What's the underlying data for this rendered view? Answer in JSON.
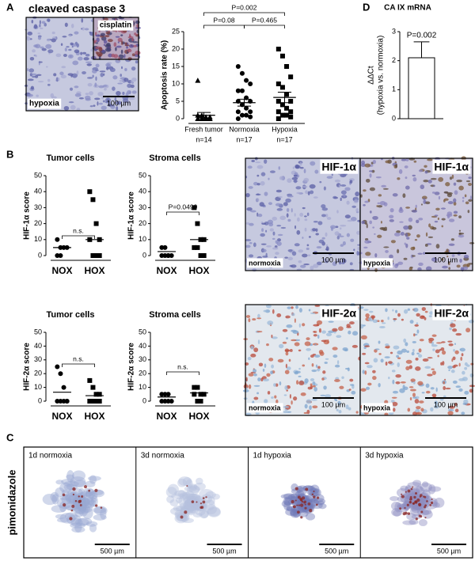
{
  "figure": {
    "panel_labels": [
      "A",
      "B",
      "C",
      "D"
    ],
    "a_image": {
      "title": "cleaved caspase 3",
      "inset": "cisplatin",
      "label": "hypoxia",
      "scale": "100 µm"
    },
    "b_images": [
      {
        "marker": "HIF-1α",
        "label": "normoxia",
        "scale": "100 µm"
      },
      {
        "marker": "HIF-1α",
        "label": "hypoxia",
        "scale": "100 µm"
      },
      {
        "marker": "HIF-2α",
        "label": "normoxia",
        "scale": "100 µm"
      },
      {
        "marker": "HIF-2α",
        "label": "hypoxia",
        "scale": "100 µm"
      }
    ],
    "c_stain": "pimonidazole",
    "c_images": [
      {
        "label": "1d normoxia",
        "scale": "500 µm"
      },
      {
        "label": "3d normoxia",
        "scale": "500 µm"
      },
      {
        "label": "1d hypoxia",
        "scale": "500 µm"
      },
      {
        "label": "3d hypoxia",
        "scale": "500 µm"
      }
    ]
  },
  "chart_data": [
    {
      "type": "strip",
      "ylabel": "Apoptosis rate (%)",
      "ylim": [
        0,
        25
      ],
      "yticks": [
        0,
        5,
        10,
        15,
        20,
        25
      ],
      "categories": [
        "Fresh tumor",
        "Normoxia",
        "Hypoxia"
      ],
      "n_labels": [
        "n=14",
        "n=17",
        "n=17"
      ],
      "markers": [
        "triangle",
        "circle",
        "square"
      ],
      "color": "#000000",
      "values": [
        [
          11,
          1,
          0.5,
          0,
          0,
          0,
          0,
          0.5,
          1,
          0,
          0,
          0,
          0,
          0
        ],
        [
          15,
          13,
          11,
          10,
          8,
          8,
          6,
          5,
          5,
          4,
          3,
          2,
          2,
          1,
          1,
          0.5,
          0
        ],
        [
          20,
          18,
          15,
          12,
          10,
          9,
          7,
          5,
          5,
          4,
          3,
          2,
          2,
          1,
          1,
          0.5,
          0
        ]
      ],
      "means": [
        1,
        4.6,
        6.1
      ],
      "sem": [
        0.8,
        1,
        1.5
      ],
      "brackets": [
        {
          "label": "P=0.002",
          "between": [
            "Fresh tumor",
            "Hypoxia"
          ]
        },
        {
          "label": "P=0.08",
          "between": [
            "Fresh tumor",
            "Normoxia"
          ]
        },
        {
          "label": "P=0.465",
          "between": [
            "Normoxia",
            "Hypoxia"
          ]
        }
      ]
    },
    {
      "type": "bar",
      "title": "CA IX mRNA",
      "ylabel": [
        "ΔΔCt",
        "(hypoxia vs. normoxia)"
      ],
      "ylim": [
        0,
        3
      ],
      "yticks": [
        0,
        1,
        2,
        3
      ],
      "categories": [
        null
      ],
      "values": [
        2.1
      ],
      "errors": [
        0.55
      ],
      "annotation": "P=0.002",
      "color": "#ffffff"
    },
    {
      "type": "strip",
      "title": "Tumor cells",
      "ylabel": "HIF-1α score",
      "ylim": [
        0,
        50
      ],
      "yticks": [
        0,
        10,
        20,
        30,
        40,
        50
      ],
      "categories": [
        "NOX",
        "HOX"
      ],
      "markers": [
        "circle",
        "square"
      ],
      "color": "#000000",
      "values": [
        [
          10,
          5,
          5,
          5,
          0,
          0
        ],
        [
          40,
          35,
          20,
          10,
          10,
          0,
          0,
          0
        ]
      ],
      "means": [
        5,
        10
      ],
      "brackets": [
        {
          "label": "n.s.",
          "between": [
            "NOX",
            "HOX"
          ]
        }
      ]
    },
    {
      "type": "strip",
      "title": "Stroma cells",
      "ylabel": "HIF-1α score",
      "ylim": [
        0,
        50
      ],
      "yticks": [
        0,
        10,
        20,
        30,
        40,
        50
      ],
      "categories": [
        "NOX",
        "HOX"
      ],
      "markers": [
        "circle",
        "square"
      ],
      "color": "#000000",
      "values": [
        [
          5,
          5,
          0,
          0,
          0,
          0,
          0
        ],
        [
          30,
          20,
          10,
          10,
          5,
          5,
          0,
          0
        ]
      ],
      "means": [
        2.5,
        10
      ],
      "brackets": [
        {
          "label": "P=0.0499",
          "between": [
            "NOX",
            "HOX"
          ]
        }
      ]
    },
    {
      "type": "strip",
      "title": "Tumor cells",
      "ylabel": "HIF-2α score",
      "ylim": [
        0,
        50
      ],
      "yticks": [
        0,
        10,
        20,
        30,
        40,
        50
      ],
      "categories": [
        "NOX",
        "HOX"
      ],
      "markers": [
        "circle",
        "square"
      ],
      "color": "#000000",
      "values": [
        [
          25,
          20,
          10,
          0,
          0,
          0,
          0,
          0
        ],
        [
          15,
          10,
          5,
          5,
          0,
          0,
          0,
          0
        ]
      ],
      "means": [
        6.5,
        4
      ],
      "brackets": [
        {
          "label": "n.s.",
          "between": [
            "NOX",
            "HOX"
          ]
        }
      ]
    },
    {
      "type": "strip",
      "title": "Stroma cells",
      "ylabel": "HIF-2α score",
      "ylim": [
        0,
        50
      ],
      "yticks": [
        0,
        10,
        20,
        30,
        40,
        50
      ],
      "categories": [
        "NOX",
        "HOX"
      ],
      "markers": [
        "circle",
        "square"
      ],
      "color": "#000000",
      "values": [
        [
          5,
          5,
          5,
          0,
          0,
          0,
          0
        ],
        [
          10,
          10,
          5,
          5,
          5,
          0,
          0
        ]
      ],
      "means": [
        3,
        6
      ],
      "brackets": [
        {
          "label": "n.s.",
          "between": [
            "NOX",
            "HOX"
          ]
        }
      ]
    }
  ]
}
